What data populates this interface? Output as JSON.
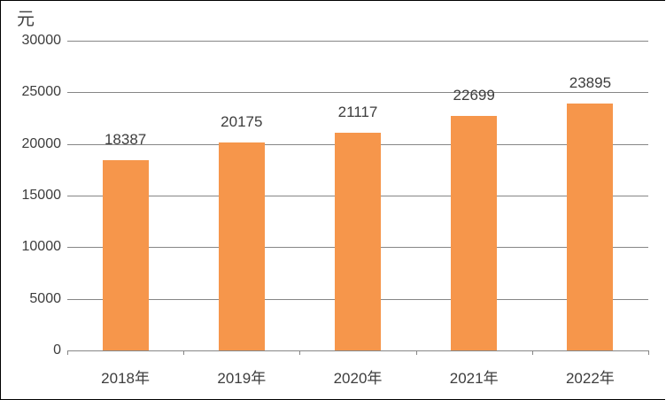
{
  "unit_label": "元",
  "colors": {
    "bar_fill": "#F6964B",
    "gridline": "#868686",
    "axis_line": "#868686",
    "text": "#3d3d3d",
    "frame_border": "#000000",
    "background": "#ffffff"
  },
  "chart_data": {
    "type": "bar",
    "categories": [
      "2018年",
      "2019年",
      "2020年",
      "2021年",
      "2022年"
    ],
    "values": [
      18387,
      20175,
      21117,
      22699,
      23895
    ],
    "data_labels": [
      "18387",
      "20175",
      "21117",
      "22699",
      "23895"
    ],
    "title": "",
    "xlabel": "",
    "ylabel": "元",
    "ylim": [
      0,
      30000
    ],
    "ytick_step": 5000,
    "yticks": [
      0,
      5000,
      10000,
      15000,
      20000,
      25000,
      30000
    ],
    "ytick_labels": [
      "0",
      "5000",
      "10000",
      "15000",
      "20000",
      "25000",
      "30000"
    ],
    "grid": true,
    "legend": false,
    "bar_color": "#F6964B"
  }
}
